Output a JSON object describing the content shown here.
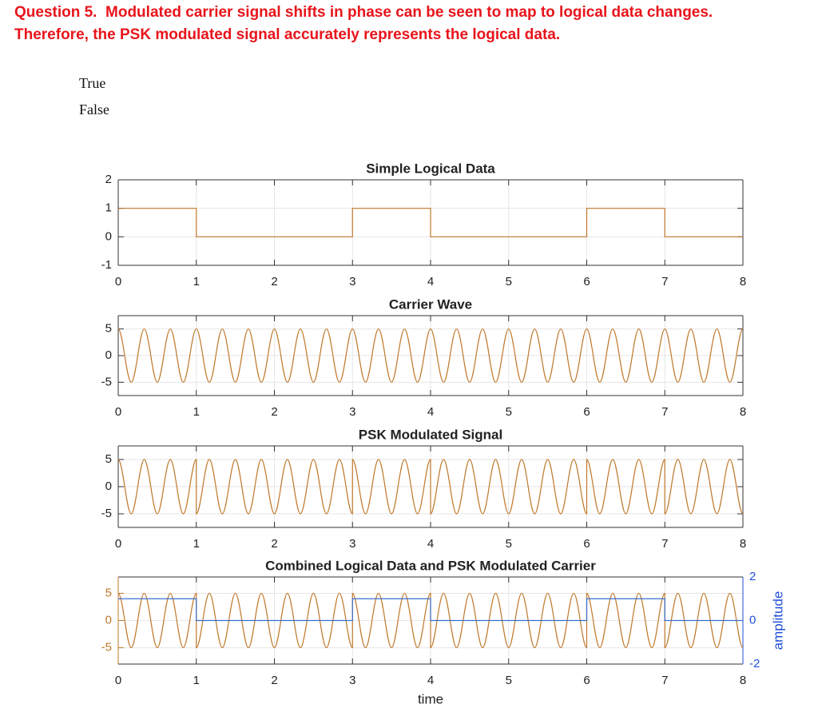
{
  "question": "Question 5.  Modulated carrier signal shifts in phase can be seen to map to logical data changes.  Therefore, the PSK modulated signal accurately represents the logical data.",
  "options": [
    "True",
    "False"
  ],
  "chart_data": [
    {
      "type": "line",
      "title": "Simple Logical Data",
      "x": [
        0,
        1,
        1,
        3,
        3,
        4,
        4,
        6,
        6,
        7,
        7,
        8
      ],
      "series": [
        {
          "color": "#c0782a",
          "values": [
            1,
            1,
            0,
            0,
            1,
            1,
            0,
            0,
            1,
            1,
            0,
            0
          ]
        }
      ],
      "xlim": [
        0,
        8
      ],
      "ylim": [
        -1,
        2
      ],
      "xticks": [
        0,
        1,
        2,
        3,
        4,
        5,
        6,
        7,
        8
      ],
      "yticks": [
        -1,
        0,
        1,
        2
      ],
      "grid": true
    },
    {
      "type": "line",
      "title": "Carrier Wave",
      "x": [
        0,
        0.083,
        0.167,
        0.25,
        0.333,
        0.417,
        0.5,
        0.583,
        0.667,
        0.75,
        0.833,
        0.917,
        1,
        1.083,
        1.167,
        1.25,
        1.333,
        1.417,
        1.5,
        1.583,
        1.667,
        1.75,
        1.833,
        1.917,
        2,
        2.083,
        2.167,
        2.25,
        2.333,
        2.417,
        2.5,
        2.583,
        2.667,
        2.75,
        2.833,
        2.917,
        3,
        3.083,
        3.167,
        3.25,
        3.333,
        3.417,
        3.5,
        3.583,
        3.667,
        3.75,
        3.833,
        3.917,
        4,
        4.083,
        4.167,
        4.25,
        4.333,
        4.417,
        4.5,
        4.583,
        4.667,
        4.75,
        4.833,
        4.917,
        5,
        5.083,
        5.167,
        5.25,
        5.333,
        5.417,
        5.5,
        5.583,
        5.667,
        5.75,
        5.833,
        5.917,
        6,
        6.083,
        6.167,
        6.25,
        6.333,
        6.417,
        6.5,
        6.583,
        6.667,
        6.75,
        6.833,
        6.917,
        7,
        7.083,
        7.167,
        7.25,
        7.333,
        7.417,
        7.5,
        7.583,
        7.667,
        7.75,
        7.833,
        7.917,
        8
      ],
      "series": [
        {
          "color": "#c0782a",
          "values": [
            5,
            0,
            -5,
            0,
            5,
            0,
            -5,
            0,
            5,
            0,
            -5,
            0,
            5,
            0,
            -5,
            0,
            5,
            0,
            -5,
            0,
            5,
            0,
            -5,
            0,
            5,
            0,
            -5,
            0,
            5,
            0,
            -5,
            0,
            5,
            0,
            -5,
            0,
            5,
            0,
            -5,
            0,
            5,
            0,
            -5,
            0,
            5,
            0,
            -5,
            0,
            5,
            0,
            -5,
            0,
            5,
            0,
            -5,
            0,
            5,
            0,
            -5,
            0,
            5,
            0,
            -5,
            0,
            5,
            0,
            -5,
            0,
            5,
            0,
            -5,
            0,
            5,
            0,
            -5,
            0,
            5,
            0,
            -5,
            0,
            5,
            0,
            -5,
            0,
            5,
            0,
            -5,
            0,
            5,
            0,
            -5,
            0,
            5,
            0,
            -5,
            0,
            5
          ]
        }
      ],
      "xlim": [
        0,
        8
      ],
      "ylim": [
        -7.5,
        7.5
      ],
      "xticks": [
        0,
        1,
        2,
        3,
        4,
        5,
        6,
        7,
        8
      ],
      "yticks": [
        -5,
        0,
        5
      ],
      "grid": true
    },
    {
      "type": "line",
      "title": "PSK Modulated Signal",
      "x": [
        0,
        0.083,
        0.167,
        0.25,
        0.333,
        0.417,
        0.5,
        0.583,
        0.667,
        0.75,
        0.833,
        0.917,
        1,
        1,
        1.083,
        1.167,
        1.25,
        1.333,
        1.417,
        1.5,
        1.583,
        1.667,
        1.75,
        1.833,
        1.917,
        2,
        2.083,
        2.167,
        2.25,
        2.333,
        2.417,
        2.5,
        2.583,
        2.667,
        2.75,
        2.833,
        2.917,
        3,
        3,
        3.083,
        3.167,
        3.25,
        3.333,
        3.417,
        3.5,
        3.583,
        3.667,
        3.75,
        3.833,
        3.917,
        4,
        4,
        4.083,
        4.167,
        4.25,
        4.333,
        4.417,
        4.5,
        4.583,
        4.667,
        4.75,
        4.833,
        4.917,
        5,
        5.083,
        5.167,
        5.25,
        5.333,
        5.417,
        5.5,
        5.583,
        5.667,
        5.75,
        5.833,
        5.917,
        6,
        6,
        6.083,
        6.167,
        6.25,
        6.333,
        6.417,
        6.5,
        6.583,
        6.667,
        6.75,
        6.833,
        6.917,
        7,
        7,
        7.083,
        7.167,
        7.25,
        7.333,
        7.417,
        7.5,
        7.583,
        7.667,
        7.75,
        7.833,
        7.917,
        8
      ],
      "series": [
        {
          "color": "#c0782a",
          "values": [
            5,
            0,
            -5,
            0,
            5,
            0,
            -5,
            0,
            5,
            0,
            -5,
            0,
            5,
            -5,
            0,
            5,
            0,
            -5,
            0,
            5,
            0,
            -5,
            0,
            5,
            0,
            -5,
            0,
            5,
            0,
            -5,
            0,
            5,
            0,
            -5,
            0,
            5,
            0,
            -5,
            5,
            0,
            -5,
            0,
            5,
            0,
            -5,
            0,
            5,
            0,
            -5,
            0,
            5,
            -5,
            0,
            5,
            0,
            -5,
            0,
            5,
            0,
            -5,
            0,
            5,
            0,
            -5,
            0,
            5,
            0,
            -5,
            0,
            5,
            0,
            -5,
            0,
            5,
            0,
            -5,
            5,
            0,
            -5,
            0,
            5,
            0,
            -5,
            0,
            5,
            0,
            -5,
            0,
            5,
            -5,
            0,
            5,
            0,
            -5,
            0,
            5,
            0,
            -5,
            0,
            5,
            0,
            -5
          ]
        }
      ],
      "xlim": [
        0,
        8
      ],
      "ylim": [
        -7.5,
        7.5
      ],
      "xticks": [
        0,
        1,
        2,
        3,
        4,
        5,
        6,
        7,
        8
      ],
      "yticks": [
        -5,
        0,
        5
      ],
      "grid": true
    },
    {
      "type": "line",
      "title": "Combined Logical Data and PSK Modulated Carrier",
      "xlabel": "time",
      "y2label": "amplitude",
      "x": [
        0,
        0.083,
        0.167,
        0.25,
        0.333,
        0.417,
        0.5,
        0.583,
        0.667,
        0.75,
        0.833,
        0.917,
        1,
        1,
        1.083,
        1.167,
        1.25,
        1.333,
        1.417,
        1.5,
        1.583,
        1.667,
        1.75,
        1.833,
        1.917,
        2,
        2.083,
        2.167,
        2.25,
        2.333,
        2.417,
        2.5,
        2.583,
        2.667,
        2.75,
        2.833,
        2.917,
        3,
        3,
        3.083,
        3.167,
        3.25,
        3.333,
        3.417,
        3.5,
        3.583,
        3.667,
        3.75,
        3.833,
        3.917,
        4,
        4,
        4.083,
        4.167,
        4.25,
        4.333,
        4.417,
        4.5,
        4.583,
        4.667,
        4.75,
        4.833,
        4.917,
        5,
        5.083,
        5.167,
        5.25,
        5.333,
        5.417,
        5.5,
        5.583,
        5.667,
        5.75,
        5.833,
        5.917,
        6,
        6,
        6.083,
        6.167,
        6.25,
        6.333,
        6.417,
        6.5,
        6.583,
        6.667,
        6.75,
        6.833,
        6.917,
        7,
        7,
        7.083,
        7.167,
        7.25,
        7.333,
        7.417,
        7.5,
        7.583,
        7.667,
        7.75,
        7.833,
        7.917,
        8
      ],
      "series": [
        {
          "color": "#c0782a",
          "values": [
            5,
            0,
            -5,
            0,
            5,
            0,
            -5,
            0,
            5,
            0,
            -5,
            0,
            5,
            -5,
            0,
            5,
            0,
            -5,
            0,
            5,
            0,
            -5,
            0,
            5,
            0,
            -5,
            0,
            5,
            0,
            -5,
            0,
            5,
            0,
            -5,
            0,
            5,
            0,
            -5,
            5,
            0,
            -5,
            0,
            5,
            0,
            -5,
            0,
            5,
            0,
            -5,
            0,
            5,
            -5,
            0,
            5,
            0,
            -5,
            0,
            5,
            0,
            -5,
            0,
            5,
            0,
            -5,
            0,
            5,
            0,
            -5,
            0,
            5,
            0,
            -5,
            0,
            5,
            0,
            -5,
            5,
            0,
            -5,
            0,
            5,
            0,
            -5,
            0,
            5,
            0,
            -5,
            0,
            5,
            -5,
            0,
            5,
            0,
            -5,
            0,
            5,
            0,
            -5,
            0,
            5,
            0,
            -5
          ]
        },
        {
          "color": "#3a6fd0",
          "axis": "y2",
          "values": [
            1,
            1,
            1,
            1,
            1,
            1,
            1,
            1,
            1,
            1,
            1,
            1,
            1,
            0,
            0,
            0,
            0,
            0,
            0,
            0,
            0,
            0,
            0,
            0,
            0,
            0,
            0,
            0,
            0,
            0,
            0,
            0,
            0,
            0,
            0,
            0,
            0,
            0,
            1,
            1,
            1,
            1,
            1,
            1,
            1,
            1,
            1,
            1,
            1,
            1,
            1,
            0,
            0,
            0,
            0,
            0,
            0,
            0,
            0,
            0,
            0,
            0,
            0,
            0,
            0,
            0,
            0,
            0,
            0,
            0,
            0,
            0,
            0,
            0,
            0,
            0,
            1,
            1,
            1,
            1,
            1,
            1,
            1,
            1,
            1,
            1,
            1,
            1,
            1,
            0,
            0,
            0,
            0,
            0,
            0,
            0,
            0,
            0,
            0,
            0,
            0,
            0
          ]
        }
      ],
      "xlim": [
        0,
        8
      ],
      "ylim": [
        -8,
        8
      ],
      "y2lim": [
        -2,
        2
      ],
      "xticks": [
        0,
        1,
        2,
        3,
        4,
        5,
        6,
        7,
        8
      ],
      "yticks": [
        -5,
        0,
        5
      ],
      "y2ticks": [
        -2,
        0,
        2
      ],
      "grid": true,
      "y_color": "#c0782a",
      "y2_color": "#1f4fd6"
    }
  ]
}
